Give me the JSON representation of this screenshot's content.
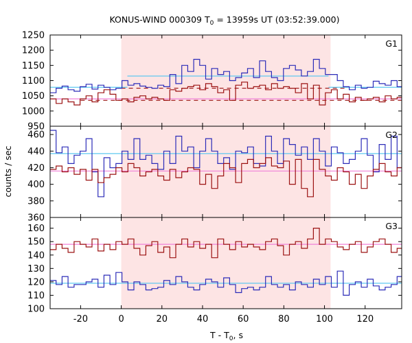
{
  "chart_data": {
    "type": "line",
    "title": {
      "prefix": "KONUS-WIND 000309 T",
      "sub": "0",
      "suffix": " = 13959s UT (03:52:39.000)"
    },
    "xlabel": {
      "prefix": "T - T",
      "sub": "0",
      "suffix": ", s"
    },
    "ylabel": "counts / sec",
    "xlim": [
      -35,
      138
    ],
    "xticks": [
      -20,
      0,
      20,
      40,
      60,
      80,
      100,
      120
    ],
    "highlight_interval": [
      0,
      103
    ],
    "colors": {
      "high_res": "#2b2bb8",
      "low_res": "#9b1111",
      "mean_high": "#5ec8f0",
      "mean_low": "#f080d8",
      "highlight": "#fde4e4"
    },
    "panels": [
      {
        "name": "G1",
        "ylim": [
          950,
          1250
        ],
        "yticks": [
          950,
          1000,
          1050,
          1100,
          1150,
          1200,
          1250
        ],
        "x_start": -35,
        "bin_width": 2.944,
        "series": [
          {
            "id": "high_res",
            "values": [
              1060,
              1075,
              1082,
              1070,
              1065,
              1080,
              1088,
              1072,
              1085,
              1078,
              1070,
              1075,
              1100,
              1085,
              1090,
              1082,
              1078,
              1075,
              1085,
              1080,
              1120,
              1090,
              1150,
              1130,
              1170,
              1150,
              1105,
              1140,
              1120,
              1130,
              1100,
              1110,
              1125,
              1140,
              1110,
              1165,
              1130,
              1110,
              1100,
              1140,
              1150,
              1135,
              1115,
              1130,
              1170,
              1140,
              1120,
              1120,
              1100,
              1080,
              1070,
              1085,
              1075,
              1078,
              1098,
              1090,
              1085,
              1100,
              1080,
              1075
            ]
          },
          {
            "id": "low_res",
            "values": [
              1040,
              1025,
              1040,
              1030,
              1020,
              1040,
              1050,
              1030,
              1060,
              1070,
              1055,
              1035,
              1040,
              1030,
              1045,
              1050,
              1040,
              1045,
              1040,
              1035,
              1070,
              1065,
              1075,
              1080,
              1085,
              1070,
              1090,
              1080,
              1060,
              1070,
              1035,
              1085,
              1095,
              1075,
              1080,
              1085,
              1070,
              1090,
              1075,
              1080,
              1075,
              1060,
              1090,
              1040,
              1085,
              1020,
              1060,
              1070,
              1040,
              1055,
              1030,
              1045,
              1035,
              1040,
              1045,
              1030,
              1050,
              1040,
              1045,
              1040
            ]
          }
        ],
        "means": [
          {
            "id": "mean_high",
            "x0": -35,
            "x1": 3,
            "y": 1078
          },
          {
            "id": "mean_high",
            "x0": 3,
            "x1": 102,
            "y": 1115
          },
          {
            "id": "mean_high",
            "x0": 102,
            "x1": 138,
            "y": 1078
          },
          {
            "id": "mean_low",
            "x0": -35,
            "x1": 138,
            "y": 1040
          }
        ],
        "dashed": [
          {
            "id": "low_res",
            "x0": -20,
            "x1": 138,
            "y": 1035
          },
          {
            "id": "low_res",
            "x0": 0,
            "x1": 110,
            "y": 1075
          }
        ]
      },
      {
        "name": "G2",
        "ylim": [
          360,
          470
        ],
        "yticks": [
          360,
          380,
          400,
          420,
          440,
          460
        ],
        "x_start": -35,
        "bin_width": 2.944,
        "series": [
          {
            "id": "high_res",
            "values": [
              465,
              438,
              445,
              425,
              435,
              440,
              455,
              415,
              385,
              432,
              420,
              425,
              440,
              430,
              455,
              430,
              435,
              425,
              418,
              440,
              425,
              458,
              440,
              445,
              420,
              440,
              455,
              440,
              425,
              432,
              418,
              440,
              438,
              445,
              425,
              422,
              458,
              440,
              425,
              455,
              448,
              435,
              445,
              430,
              455,
              440,
              422,
              445,
              438,
              425,
              430,
              440,
              455,
              435,
              415,
              448,
              430,
              458,
              420,
              445
            ]
          },
          {
            "id": "low_res",
            "values": [
              418,
              422,
              415,
              420,
              412,
              418,
              405,
              418,
              402,
              408,
              412,
              420,
              415,
              425,
              420,
              410,
              415,
              418,
              410,
              405,
              418,
              408,
              415,
              420,
              418,
              400,
              412,
              395,
              410,
              425,
              420,
              402,
              425,
              430,
              420,
              425,
              432,
              422,
              420,
              428,
              400,
              430,
              395,
              385,
              430,
              418,
              410,
              405,
              420,
              415,
              400,
              412,
              395,
              410,
              418,
              425,
              415,
              410,
              420,
              415
            ]
          }
        ],
        "means": [
          {
            "id": "mean_high",
            "x0": -35,
            "x1": 138,
            "y": 437
          },
          {
            "id": "mean_low",
            "x0": -35,
            "x1": 138,
            "y": 416
          }
        ],
        "dashed": []
      },
      {
        "name": "G3",
        "ylim": [
          100,
          168
        ],
        "yticks": [
          100,
          110,
          120,
          130,
          140,
          150,
          160
        ],
        "x_start": -35,
        "bin_width": 2.944,
        "series": [
          {
            "id": "high_res",
            "values": [
              121,
              118,
              124,
              116,
              118,
              118,
              120,
              122,
              116,
              125,
              118,
              127,
              120,
              114,
              120,
              118,
              114,
              115,
              116,
              121,
              118,
              124,
              120,
              116,
              114,
              118,
              122,
              120,
              116,
              123,
              118,
              112,
              115,
              116,
              114,
              116,
              124,
              118,
              116,
              118,
              114,
              120,
              118,
              116,
              122,
              118,
              124,
              116,
              128,
              110,
              118,
              120,
              116,
              122,
              117,
              114,
              116,
              118,
              124,
              117
            ]
          },
          {
            "id": "low_res",
            "values": [
              144,
              148,
              145,
              142,
              150,
              148,
              146,
              152,
              143,
              148,
              144,
              150,
              148,
              152,
              145,
              140,
              147,
              150,
              142,
              146,
              138,
              148,
              152,
              146,
              150,
              145,
              148,
              138,
              152,
              148,
              144,
              150,
              146,
              148,
              146,
              144,
              150,
              152,
              147,
              140,
              148,
              150,
              145,
              152,
              160,
              148,
              152,
              150,
              146,
              144,
              148,
              150,
              142,
              146,
              150,
              152,
              148,
              142,
              145,
              150
            ]
          }
        ],
        "means": [
          {
            "id": "mean_high",
            "x0": -35,
            "x1": 138,
            "y": 119
          },
          {
            "id": "mean_low",
            "x0": -35,
            "x1": 138,
            "y": 148
          }
        ],
        "dashed": []
      }
    ]
  }
}
